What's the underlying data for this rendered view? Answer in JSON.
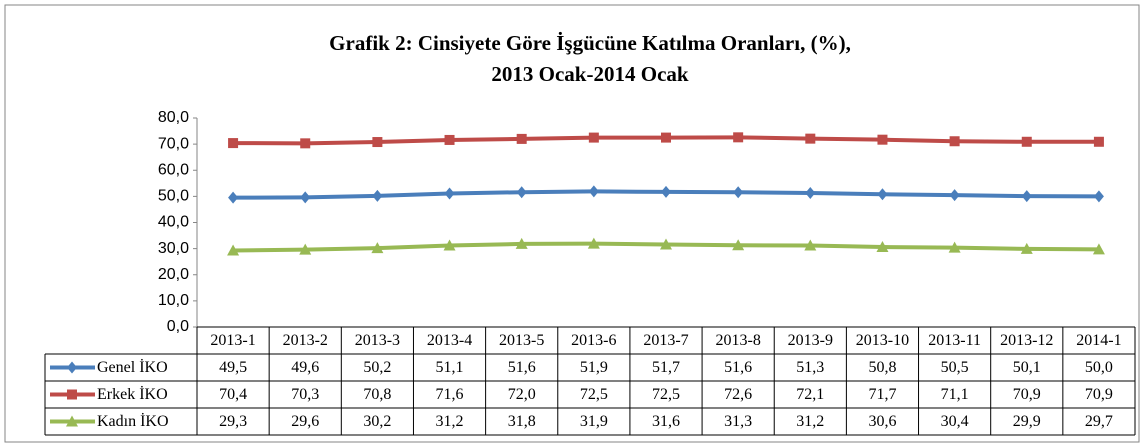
{
  "chart_data": {
    "type": "line",
    "title": "Grafik 2: Cinsiyete Göre İşgücüne Katılma Oranları, (%),",
    "subtitle": "2013 Ocak-2014 Ocak",
    "categories": [
      "2013-1",
      "2013-2",
      "2013-3",
      "2013-4",
      "2013-5",
      "2013-6",
      "2013-7",
      "2013-8",
      "2013-9",
      "2013-10",
      "2013-11",
      "2013-12",
      "2014-1"
    ],
    "series": [
      {
        "name": "Genel İKO",
        "color": "#4a7ebb",
        "marker": "diamond",
        "values": [
          49.5,
          49.6,
          50.2,
          51.1,
          51.6,
          51.9,
          51.7,
          51.6,
          51.3,
          50.8,
          50.5,
          50.1,
          50.0
        ],
        "value_labels": [
          "49,5",
          "49,6",
          "50,2",
          "51,1",
          "51,6",
          "51,9",
          "51,7",
          "51,6",
          "51,3",
          "50,8",
          "50,5",
          "50,1",
          "50,0"
        ]
      },
      {
        "name": "Erkek İKO",
        "color": "#be4b48",
        "marker": "square",
        "values": [
          70.4,
          70.3,
          70.8,
          71.6,
          72.0,
          72.5,
          72.5,
          72.6,
          72.1,
          71.7,
          71.1,
          70.9,
          70.9
        ],
        "value_labels": [
          "70,4",
          "70,3",
          "70,8",
          "71,6",
          "72,0",
          "72,5",
          "72,5",
          "72,6",
          "72,1",
          "71,7",
          "71,1",
          "70,9",
          "70,9"
        ]
      },
      {
        "name": "Kadın İKO",
        "color": "#98b954",
        "marker": "triangle",
        "values": [
          29.3,
          29.6,
          30.2,
          31.2,
          31.8,
          31.9,
          31.6,
          31.3,
          31.2,
          30.6,
          30.4,
          29.9,
          29.7
        ],
        "value_labels": [
          "29,3",
          "29,6",
          "30,2",
          "31,2",
          "31,8",
          "31,9",
          "31,6",
          "31,3",
          "31,2",
          "30,6",
          "30,4",
          "29,9",
          "29,7"
        ]
      }
    ],
    "ylim": [
      0,
      80
    ],
    "yticks": [
      {
        "value": 0,
        "label": "0,0"
      },
      {
        "value": 10,
        "label": "10,0"
      },
      {
        "value": 20,
        "label": "20,0"
      },
      {
        "value": 30,
        "label": "30,0"
      },
      {
        "value": 40,
        "label": "40,0"
      },
      {
        "value": 50,
        "label": "50,0"
      },
      {
        "value": 60,
        "label": "60,0"
      },
      {
        "value": 70,
        "label": "70,0"
      },
      {
        "value": 80,
        "label": "80,0"
      }
    ],
    "grid": false
  }
}
